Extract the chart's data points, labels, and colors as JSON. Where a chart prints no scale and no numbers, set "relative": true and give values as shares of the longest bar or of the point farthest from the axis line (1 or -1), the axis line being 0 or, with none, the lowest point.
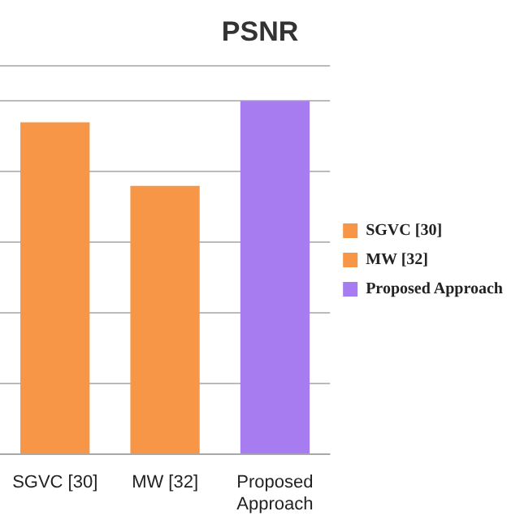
{
  "chart_data": {
    "type": "bar",
    "title": "PSNR",
    "relative": true,
    "grid": "y",
    "legend": "right",
    "categories": [
      "SGVC [30]",
      "MW [32]",
      "Proposed Approach"
    ],
    "series": [
      {
        "name": "SGVC [30]",
        "color": "#f79646",
        "values": [
          0.94,
          null,
          null
        ]
      },
      {
        "name": "MW [32]",
        "color": "#f79646",
        "values": [
          null,
          0.76,
          null
        ]
      },
      {
        "name": "Proposed Approach",
        "color": "#a67cf0",
        "values": [
          null,
          null,
          1
        ]
      }
    ]
  }
}
